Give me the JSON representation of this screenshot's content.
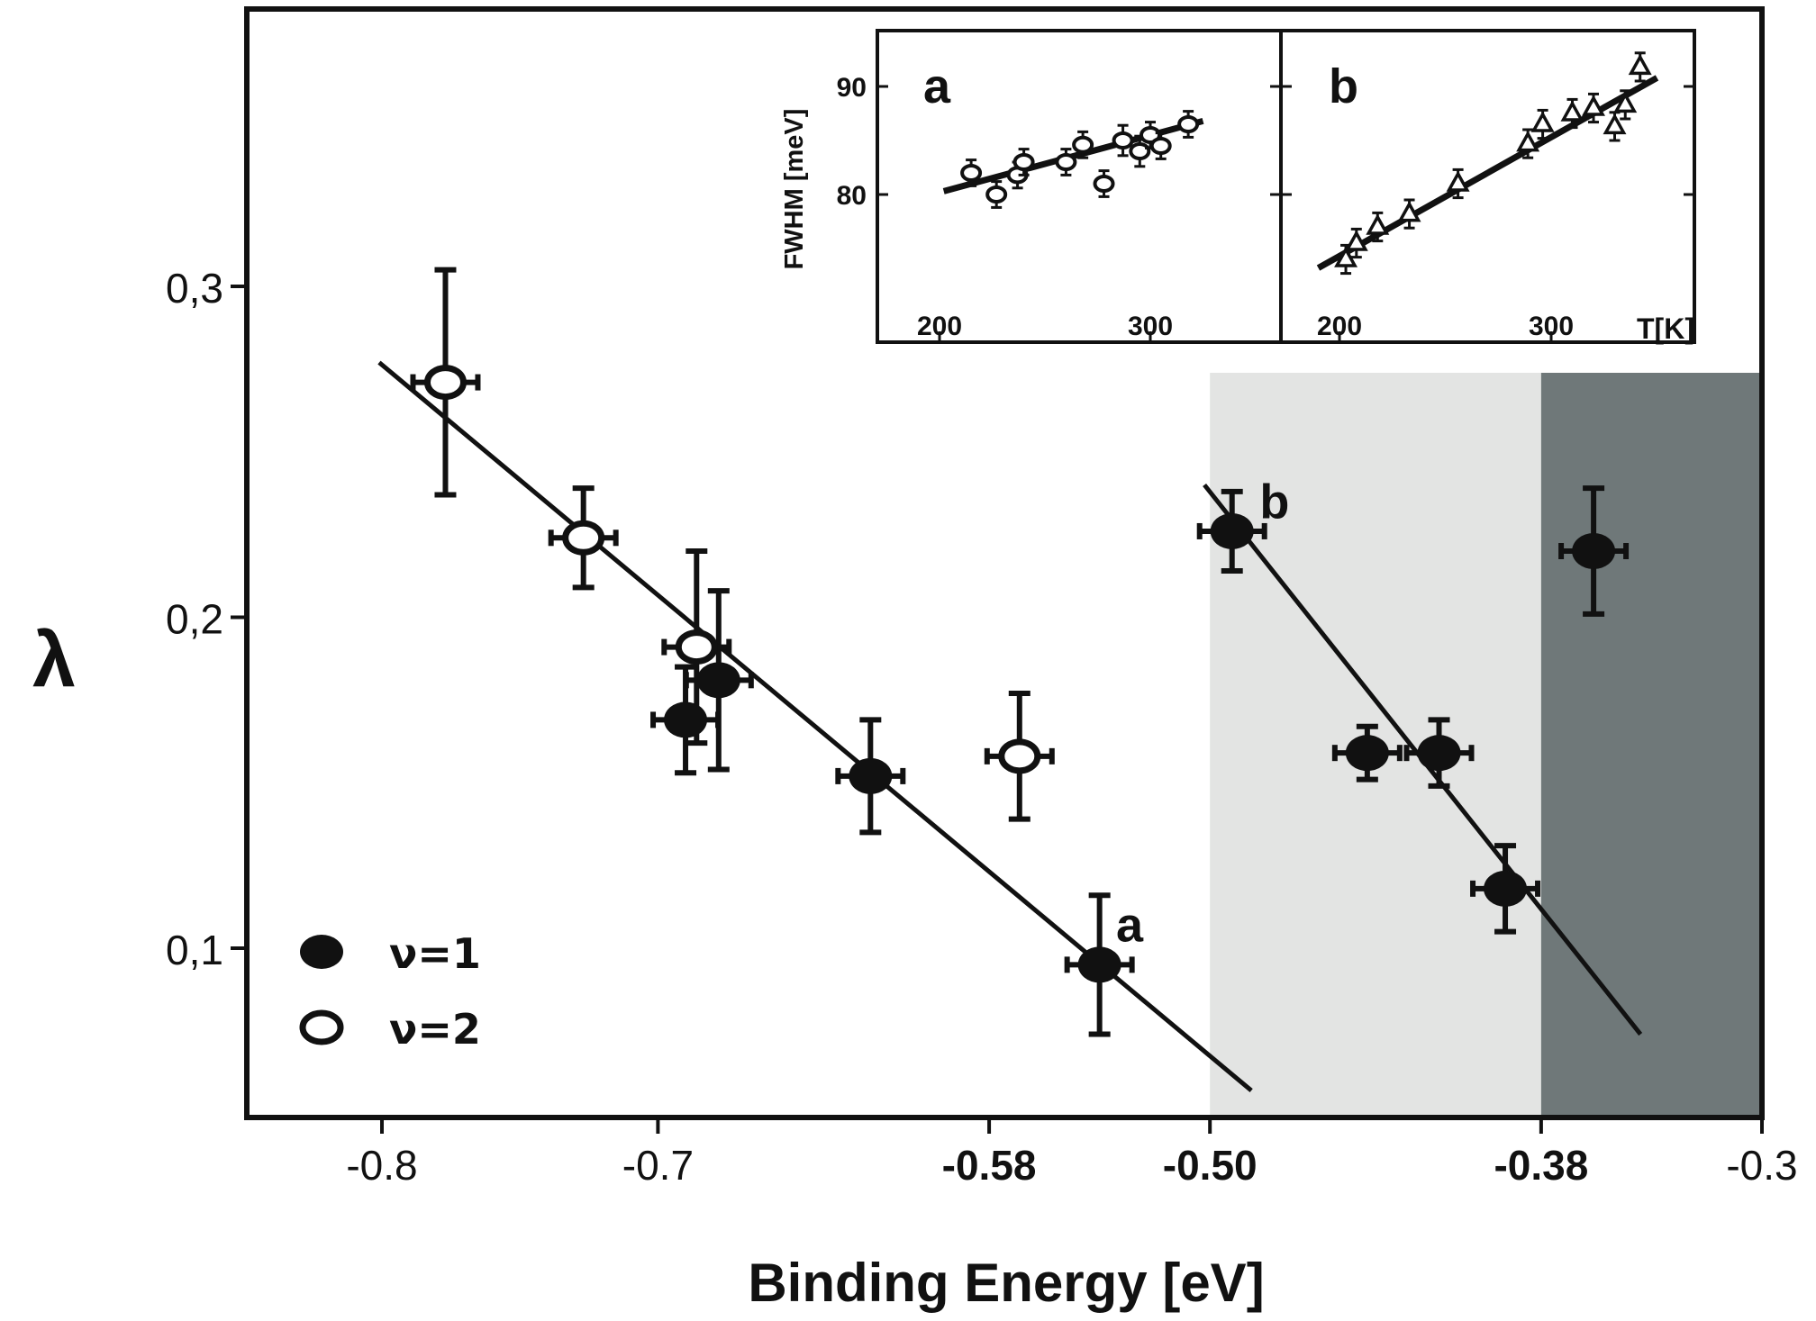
{
  "chart_data": [
    {
      "type": "scatter",
      "xlabel": "Binding Energy [eV]",
      "ylabel": "λ",
      "xlim": [
        -0.8,
        -0.3
      ],
      "ylim": [
        0.055,
        0.375
      ],
      "x_ticks": [
        "-0.8",
        "-0.7",
        "-0.58",
        "-0.50",
        "-0.38",
        "-0.3"
      ],
      "x_ticks_bold": [
        "-0.58",
        "-0.50",
        "-0.38"
      ],
      "y_ticks": [
        "0,3",
        "0,2",
        "0,1"
      ],
      "shaded_regions": [
        {
          "x": [
            -0.5,
            -0.38
          ],
          "color": "#e3e4e3"
        },
        {
          "x": [
            -0.38,
            -0.3
          ],
          "color": "#6f7879"
        }
      ],
      "series": [
        {
          "name": "ν=1",
          "marker": "filled",
          "points": [
            {
              "x": -0.69,
              "y": 0.169,
              "err": 0.016
            },
            {
              "x": -0.678,
              "y": 0.181,
              "err": 0.027
            },
            {
              "x": -0.623,
              "y": 0.152,
              "err": 0.017
            },
            {
              "x": -0.54,
              "y": 0.095,
              "err": 0.021
            },
            {
              "x": -0.492,
              "y": 0.226,
              "err": 0.012
            },
            {
              "x": -0.443,
              "y": 0.159,
              "err": 0.008
            },
            {
              "x": -0.417,
              "y": 0.159,
              "err": 0.01
            },
            {
              "x": -0.393,
              "y": 0.118,
              "err": 0.013
            },
            {
              "x": -0.361,
              "y": 0.22,
              "err": 0.019
            }
          ]
        },
        {
          "name": "ν=2",
          "marker": "open",
          "points": [
            {
              "x": -0.777,
              "y": 0.271,
              "err": 0.034
            },
            {
              "x": -0.727,
              "y": 0.224,
              "err": 0.015
            },
            {
              "x": -0.686,
              "y": 0.191,
              "err": 0.029
            },
            {
              "x": -0.569,
              "y": 0.158,
              "err": 0.019
            }
          ]
        }
      ],
      "fit_lines": [
        {
          "label": "a",
          "from": [
            -0.801,
            0.277
          ],
          "to": [
            -0.485,
            0.057
          ],
          "label_at": [
            -0.534,
            0.102
          ]
        },
        {
          "label": "b",
          "from": [
            -0.502,
            0.24
          ],
          "to": [
            -0.344,
            0.074
          ],
          "label_at": [
            -0.482,
            0.23
          ]
        }
      ]
    },
    {
      "type": "scatter",
      "panel": "a",
      "ylabel": "FWHM [meV]",
      "xlim": [
        170,
        320
      ],
      "ylim": [
        72,
        95
      ],
      "x_ticks": [
        "200",
        "300"
      ],
      "y_ticks": [
        "90",
        "80"
      ],
      "points": [
        {
          "x": 215,
          "y": 82,
          "err": 1.2
        },
        {
          "x": 227,
          "y": 80,
          "err": 1.2
        },
        {
          "x": 237,
          "y": 81.8,
          "err": 1.2
        },
        {
          "x": 240,
          "y": 83,
          "err": 1.2
        },
        {
          "x": 260,
          "y": 83,
          "err": 1.2
        },
        {
          "x": 268,
          "y": 84.6,
          "err": 1.2
        },
        {
          "x": 278,
          "y": 81,
          "err": 1.2
        },
        {
          "x": 287,
          "y": 85,
          "err": 1.4
        },
        {
          "x": 295,
          "y": 84,
          "err": 1.4
        },
        {
          "x": 300,
          "y": 85.5,
          "err": 1.2
        },
        {
          "x": 305,
          "y": 84.5,
          "err": 1.2
        },
        {
          "x": 318,
          "y": 86.5,
          "err": 1.2
        }
      ],
      "fit_line": {
        "from": [
          202,
          80.3
        ],
        "to": [
          325,
          86.8
        ]
      }
    },
    {
      "type": "scatter",
      "panel": "b",
      "xlabel": "T[K]",
      "xlim": [
        170,
        365
      ],
      "ylim": [
        72,
        95
      ],
      "x_ticks": [
        "200",
        "300"
      ],
      "points": [
        {
          "x": 203,
          "y": 74,
          "err": 1.3
        },
        {
          "x": 208,
          "y": 75.5,
          "err": 1.3
        },
        {
          "x": 218,
          "y": 77,
          "err": 1.3
        },
        {
          "x": 233,
          "y": 78.2,
          "err": 1.3
        },
        {
          "x": 256,
          "y": 81,
          "err": 1.3
        },
        {
          "x": 289,
          "y": 84.7,
          "err": 1.3
        },
        {
          "x": 296,
          "y": 86.5,
          "err": 1.3
        },
        {
          "x": 310,
          "y": 87.5,
          "err": 1.3
        },
        {
          "x": 320,
          "y": 88,
          "err": 1.3
        },
        {
          "x": 330,
          "y": 86.3,
          "err": 1.3
        },
        {
          "x": 335,
          "y": 88.3,
          "err": 1.3
        },
        {
          "x": 342,
          "y": 91.8,
          "err": 1.3
        }
      ],
      "fit_line": {
        "from": [
          190,
          73.2
        ],
        "to": [
          350,
          90.8
        ]
      }
    }
  ],
  "legend": {
    "entries": [
      {
        "label": "ν=1",
        "marker": "filled"
      },
      {
        "label": "ν=2",
        "marker": "open"
      }
    ]
  }
}
